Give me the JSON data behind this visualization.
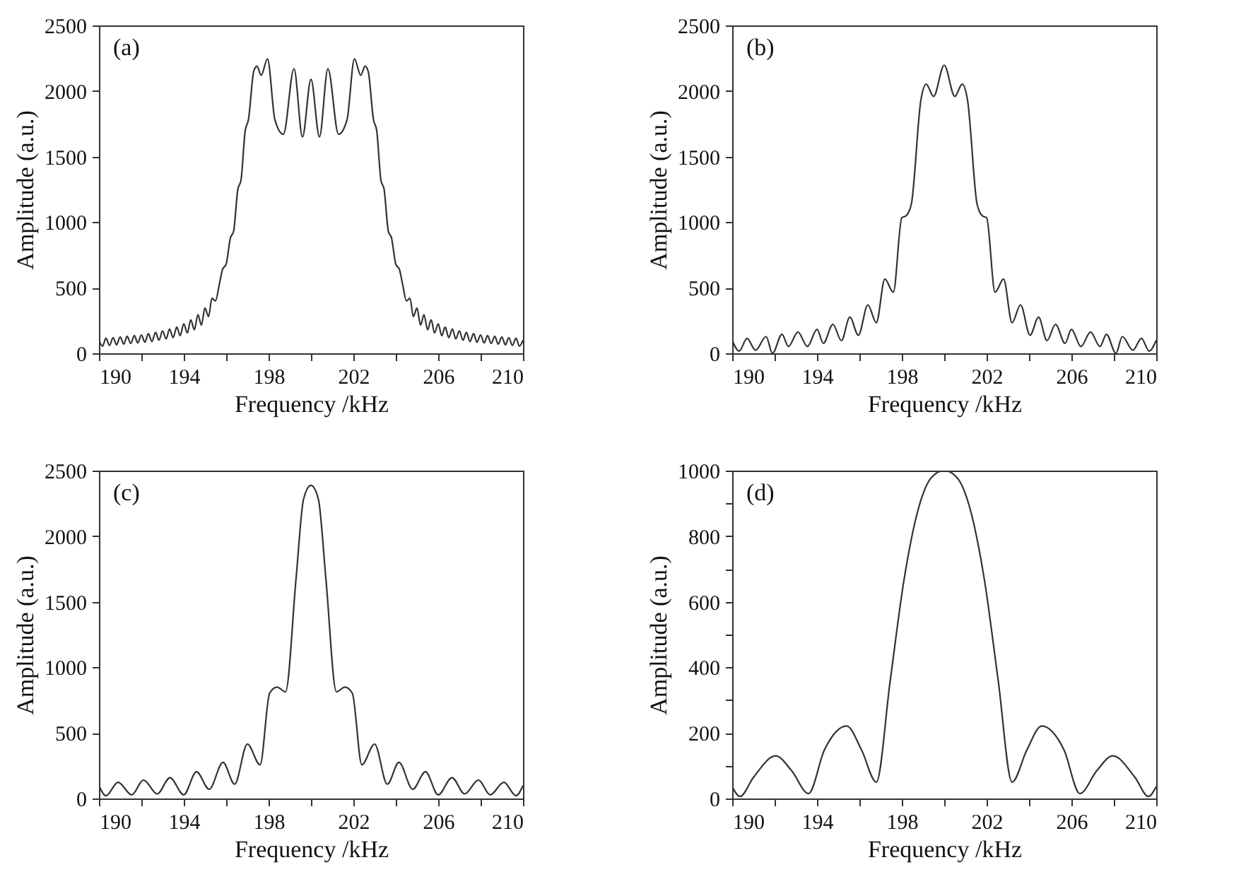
{
  "chart_data": [
    {
      "type": "line",
      "annotations": [
        "(a)"
      ],
      "xlabel": "Frequency /kHz",
      "ylabel": "Amplitude (a.u.)",
      "xlim": [
        190,
        210
      ],
      "ylim": [
        0,
        2500
      ],
      "xticks": [
        190,
        {
          "value": 192,
          "label": null
        },
        194,
        {
          "value": 196,
          "label": null
        },
        198,
        {
          "value": 200,
          "label": null
        },
        202,
        {
          "value": 204,
          "label": null
        },
        206,
        {
          "value": 208,
          "label": null
        },
        210
      ],
      "yticks": [
        0,
        500,
        1000,
        1500,
        2000,
        2500
      ],
      "grid": false,
      "legend": false,
      "series": [
        {
          "color": "#333333",
          "x": [
            190.0,
            190.17,
            190.33,
            190.5,
            190.67,
            190.83,
            191.0,
            191.17,
            191.33,
            191.5,
            191.67,
            191.83,
            192.0,
            192.17,
            192.33,
            192.5,
            192.67,
            192.83,
            193.0,
            193.17,
            193.33,
            193.5,
            193.67,
            193.83,
            194.0,
            194.17,
            194.33,
            194.5,
            194.67,
            194.83,
            195.0,
            195.17,
            195.33,
            195.5,
            195.67,
            195.83,
            196.0,
            196.2,
            196.35,
            196.55,
            196.7,
            196.9,
            197.05,
            197.3,
            197.45,
            197.65,
            197.95,
            198.3,
            198.7,
            199.2,
            199.6,
            200.0,
            200.4,
            200.8,
            201.3,
            201.7,
            202.05,
            202.35,
            202.55,
            202.7,
            202.95,
            203.1,
            203.3,
            203.45,
            203.65,
            203.8,
            204.0,
            204.17,
            204.33,
            204.5,
            204.67,
            204.83,
            205.0,
            205.17,
            205.33,
            205.5,
            205.67,
            205.83,
            206.0,
            206.17,
            206.33,
            206.5,
            206.67,
            206.83,
            207.0,
            207.17,
            207.33,
            207.5,
            207.67,
            207.83,
            208.0,
            208.17,
            208.33,
            208.5,
            208.67,
            208.83,
            209.0,
            209.17,
            209.33,
            209.5,
            209.67,
            209.83,
            210.0
          ],
          "values": [
            100,
            55,
            115,
            60,
            120,
            65,
            125,
            70,
            130,
            75,
            135,
            80,
            140,
            85,
            150,
            90,
            160,
            100,
            170,
            110,
            185,
            120,
            200,
            135,
            225,
            155,
            255,
            180,
            295,
            215,
            345,
            280,
            420,
            400,
            520,
            640,
            680,
            880,
            930,
            1250,
            1320,
            1700,
            1780,
            2150,
            2190,
            2120,
            2245,
            1780,
            1670,
            2170,
            1650,
            2090,
            1650,
            2170,
            1670,
            1780,
            2245,
            2120,
            2190,
            2150,
            1780,
            1700,
            1320,
            1250,
            930,
            880,
            680,
            640,
            520,
            400,
            420,
            280,
            345,
            215,
            295,
            180,
            255,
            155,
            225,
            135,
            200,
            120,
            185,
            110,
            170,
            100,
            160,
            90,
            150,
            85,
            140,
            80,
            135,
            75,
            130,
            70,
            125,
            65,
            120,
            60,
            115,
            55,
            100
          ]
        }
      ]
    },
    {
      "type": "line",
      "annotations": [
        "(b)"
      ],
      "xlabel": "Frequency /kHz",
      "ylabel": "Amplitude (a.u.)",
      "xlim": [
        190,
        210
      ],
      "ylim": [
        0,
        2500
      ],
      "xticks": [
        190,
        {
          "value": 192,
          "label": null
        },
        194,
        {
          "value": 196,
          "label": null
        },
        198,
        {
          "value": 200,
          "label": null
        },
        202,
        {
          "value": 204,
          "label": null
        },
        206,
        {
          "value": 208,
          "label": null
        },
        210
      ],
      "yticks": [
        0,
        500,
        1000,
        1500,
        2000,
        2500
      ],
      "grid": false,
      "legend": false,
      "series": [
        {
          "color": "#333333",
          "x": [
            190.0,
            190.33,
            190.7,
            191.1,
            191.6,
            191.9,
            192.35,
            192.65,
            193.1,
            193.55,
            194.0,
            194.3,
            194.75,
            195.15,
            195.55,
            195.95,
            196.4,
            196.8,
            197.2,
            197.6,
            198.0,
            198.2,
            198.45,
            198.9,
            199.15,
            199.5,
            200.0,
            200.5,
            200.85,
            201.1,
            201.55,
            201.8,
            202.0,
            202.4,
            202.8,
            203.2,
            203.6,
            204.05,
            204.45,
            204.85,
            205.25,
            205.7,
            206.0,
            206.45,
            206.9,
            207.35,
            207.65,
            208.1,
            208.4,
            208.9,
            209.3,
            209.67,
            210.0
          ],
          "values": [
            100,
            17,
            114,
            24,
            128,
            0,
            145,
            52,
            162,
            52,
            183,
            76,
            221,
            97,
            276,
            138,
            369,
            234,
            566,
            466,
            1034,
            1048,
            1138,
            1931,
            2052,
            1959,
            2197,
            1959,
            2052,
            1931,
            1138,
            1048,
            1034,
            466,
            566,
            234,
            369,
            138,
            276,
            97,
            221,
            76,
            183,
            52,
            162,
            52,
            145,
            0,
            128,
            24,
            114,
            17,
            100
          ]
        }
      ]
    },
    {
      "type": "line",
      "annotations": [
        "(c)"
      ],
      "xlabel": "Frequency /kHz",
      "ylabel": "Amplitude (a.u.)",
      "xlim": [
        190,
        210
      ],
      "ylim": [
        0,
        2500
      ],
      "xticks": [
        190,
        {
          "value": 192,
          "label": null
        },
        194,
        {
          "value": 196,
          "label": null
        },
        198,
        {
          "value": 200,
          "label": null
        },
        202,
        {
          "value": 204,
          "label": null
        },
        206,
        {
          "value": 208,
          "label": null
        },
        210
      ],
      "yticks": [
        0,
        500,
        1000,
        1500,
        2000,
        2500
      ],
      "grid": false,
      "legend": false,
      "series": [
        {
          "color": "#333333",
          "x": [
            190.0,
            190.33,
            190.9,
            191.55,
            192.1,
            192.75,
            193.35,
            194.0,
            194.6,
            195.2,
            195.85,
            196.4,
            197.0,
            197.6,
            198.05,
            198.4,
            198.8,
            199.3,
            199.65,
            200.0,
            200.35,
            200.7,
            201.2,
            201.6,
            201.95,
            202.4,
            203.0,
            203.6,
            204.15,
            204.8,
            205.4,
            206.0,
            206.65,
            207.25,
            207.9,
            208.45,
            209.1,
            209.67,
            210.0
          ],
          "values": [
            99,
            21,
            123,
            28,
            141,
            35,
            158,
            28,
            204,
            70,
            275,
            109,
            415,
            257,
            803,
            849,
            813,
            1683,
            2282,
            2387,
            2282,
            1683,
            813,
            849,
            803,
            257,
            415,
            109,
            275,
            70,
            204,
            28,
            158,
            35,
            141,
            28,
            123,
            21,
            99
          ]
        }
      ]
    },
    {
      "type": "line",
      "annotations": [
        "(d)"
      ],
      "xlabel": "Frequency /kHz",
      "ylabel": "Amplitude (a.u.)",
      "xlim": [
        190,
        210
      ],
      "ylim": [
        0,
        1000
      ],
      "xticks": [
        190,
        {
          "value": 192,
          "label": null
        },
        194,
        {
          "value": 196,
          "label": null
        },
        198,
        {
          "value": 200,
          "label": null
        },
        202,
        {
          "value": 204,
          "label": null
        },
        206,
        {
          "value": 208,
          "label": null
        },
        210
      ],
      "yticks": [
        0,
        {
          "value": 100,
          "label": null
        },
        200,
        {
          "value": 300,
          "label": null
        },
        400,
        {
          "value": 500,
          "label": null
        },
        600,
        {
          "value": 700,
          "label": null
        },
        800,
        {
          "value": 900,
          "label": null
        },
        1000
      ],
      "grid": false,
      "legend": false,
      "series": [
        {
          "color": "#333333",
          "x": [
            190.0,
            190.37,
            191.0,
            192.05,
            192.8,
            193.6,
            194.35,
            195.4,
            196.1,
            196.8,
            197.45,
            198.1,
            198.8,
            199.4,
            200.0,
            200.6,
            201.2,
            201.9,
            202.55,
            203.2,
            203.9,
            204.6,
            205.65,
            206.4,
            207.2,
            207.95,
            209.0,
            209.63,
            210.0
          ],
          "values": [
            36,
            6,
            64,
            130,
            85,
            15,
            148,
            221,
            148,
            50,
            358,
            665,
            888,
            979,
            1000,
            979,
            888,
            665,
            358,
            50,
            148,
            221,
            148,
            15,
            85,
            130,
            64,
            6,
            36
          ]
        }
      ]
    }
  ]
}
